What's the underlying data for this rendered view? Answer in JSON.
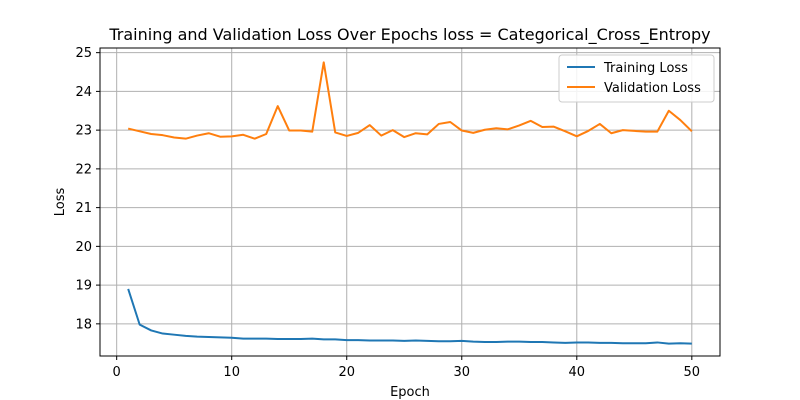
{
  "chart_data": {
    "type": "line",
    "title": "Training and Validation Loss Over Epochs loss = Categorical_Cross_Entropy",
    "xlabel": "Epoch",
    "ylabel": "Loss",
    "xlim": [
      -1.45,
      52.45
    ],
    "ylim": [
      17.17,
      25.12
    ],
    "xticks": [
      0,
      10,
      20,
      30,
      40,
      50
    ],
    "yticks": [
      18,
      19,
      20,
      21,
      22,
      23,
      24,
      25
    ],
    "grid": true,
    "legend_position": "top-right",
    "x": [
      1,
      2,
      3,
      4,
      5,
      6,
      7,
      8,
      9,
      10,
      11,
      12,
      13,
      14,
      15,
      16,
      17,
      18,
      19,
      20,
      21,
      22,
      23,
      24,
      25,
      26,
      27,
      28,
      29,
      30,
      31,
      32,
      33,
      34,
      35,
      36,
      37,
      38,
      39,
      40,
      41,
      42,
      43,
      44,
      45,
      46,
      47,
      48,
      49,
      50
    ],
    "series": [
      {
        "name": "Training Loss",
        "color": "#1f77b4",
        "values": [
          18.9,
          17.98,
          17.83,
          17.75,
          17.72,
          17.69,
          17.67,
          17.66,
          17.65,
          17.64,
          17.62,
          17.62,
          17.62,
          17.61,
          17.61,
          17.61,
          17.62,
          17.6,
          17.6,
          17.58,
          17.58,
          17.57,
          17.57,
          17.57,
          17.56,
          17.57,
          17.56,
          17.55,
          17.55,
          17.56,
          17.54,
          17.53,
          17.53,
          17.54,
          17.54,
          17.53,
          17.53,
          17.52,
          17.51,
          17.52,
          17.52,
          17.51,
          17.51,
          17.5,
          17.5,
          17.5,
          17.52,
          17.49,
          17.5,
          17.49
        ]
      },
      {
        "name": "Validation Loss",
        "color": "#ff7f0e",
        "values": [
          23.04,
          22.97,
          22.9,
          22.87,
          22.81,
          22.78,
          22.86,
          22.92,
          22.83,
          22.84,
          22.88,
          22.78,
          22.9,
          23.62,
          22.99,
          22.99,
          22.96,
          24.75,
          22.94,
          22.85,
          22.93,
          23.13,
          22.86,
          23.0,
          22.82,
          22.92,
          22.89,
          23.16,
          23.21,
          22.99,
          22.93,
          23.01,
          23.05,
          23.02,
          23.12,
          23.24,
          23.08,
          23.09,
          22.97,
          22.84,
          22.98,
          23.16,
          22.92,
          23.0,
          22.98,
          22.96,
          22.96,
          23.5,
          23.26,
          22.97
        ]
      }
    ]
  }
}
